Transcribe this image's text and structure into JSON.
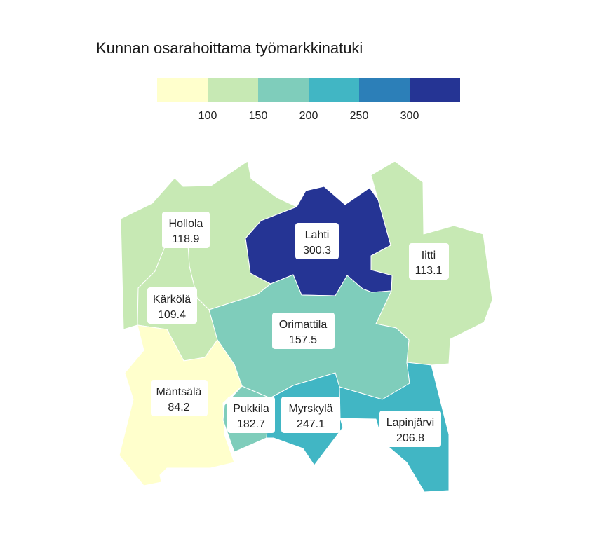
{
  "title": "Kunnan osarahoittama työmarkkinatuki",
  "legend": {
    "colors": [
      "#ffffcc",
      "#c7e9b4",
      "#7fcdbb",
      "#41b6c4",
      "#2c7fb8",
      "#253494"
    ],
    "ticks": [
      "100",
      "150",
      "200",
      "250",
      "300"
    ],
    "breaks": [
      100,
      150,
      200,
      250,
      300
    ]
  },
  "municipalities": [
    {
      "id": "hollola",
      "name": "Hollola",
      "value": "118.9"
    },
    {
      "id": "lahti",
      "name": "Lahti",
      "value": "300.3"
    },
    {
      "id": "iitti",
      "name": "Iitti",
      "value": "113.1"
    },
    {
      "id": "karkola",
      "name": "Kärkölä",
      "value": "109.4"
    },
    {
      "id": "orimattila",
      "name": "Orimattila",
      "value": "157.5"
    },
    {
      "id": "mantsala",
      "name": "Mäntsälä",
      "value": "84.2"
    },
    {
      "id": "pukkila",
      "name": "Pukkila",
      "value": "182.7"
    },
    {
      "id": "myrskyla",
      "name": "Myrskylä",
      "value": "247.1"
    },
    {
      "id": "lapinjarvi",
      "name": "Lapinjärvi",
      "value": "206.8"
    }
  ]
}
